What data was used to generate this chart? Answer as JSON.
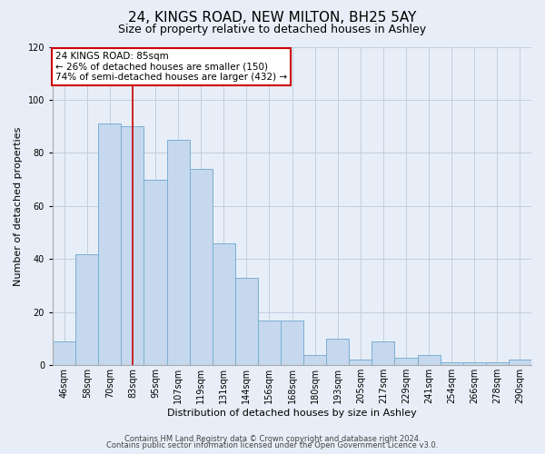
{
  "title": "24, KINGS ROAD, NEW MILTON, BH25 5AY",
  "subtitle": "Size of property relative to detached houses in Ashley",
  "xlabel": "Distribution of detached houses by size in Ashley",
  "ylabel": "Number of detached properties",
  "categories": [
    "46sqm",
    "58sqm",
    "70sqm",
    "83sqm",
    "95sqm",
    "107sqm",
    "119sqm",
    "131sqm",
    "144sqm",
    "156sqm",
    "168sqm",
    "180sqm",
    "193sqm",
    "205sqm",
    "217sqm",
    "229sqm",
    "241sqm",
    "254sqm",
    "266sqm",
    "278sqm",
    "290sqm"
  ],
  "values": [
    9,
    42,
    91,
    90,
    70,
    85,
    74,
    46,
    33,
    17,
    17,
    4,
    10,
    2,
    9,
    3,
    4,
    1,
    1,
    1,
    2
  ],
  "bar_color": "#c5d8ed",
  "bar_edge_color": "#7aafd4",
  "ylim": [
    0,
    120
  ],
  "yticks": [
    0,
    20,
    40,
    60,
    80,
    100,
    120
  ],
  "vline_x": 3,
  "vline_color": "#cc0000",
  "annotation_title": "24 KINGS ROAD: 85sqm",
  "annotation_line1": "← 26% of detached houses are smaller (150)",
  "annotation_line2": "74% of semi-detached houses are larger (432) →",
  "annotation_box_color": "#ffffff",
  "annotation_box_edge": "#cc0000",
  "footer1": "Contains HM Land Registry data © Crown copyright and database right 2024.",
  "footer2": "Contains public sector information licensed under the Open Government Licence v3.0.",
  "bg_color": "#e8eef7",
  "plot_bg_color": "#e8eef7",
  "title_fontsize": 11,
  "subtitle_fontsize": 9,
  "axis_label_fontsize": 8,
  "tick_fontsize": 7,
  "annotation_fontsize": 7.5,
  "footer_fontsize": 6
}
